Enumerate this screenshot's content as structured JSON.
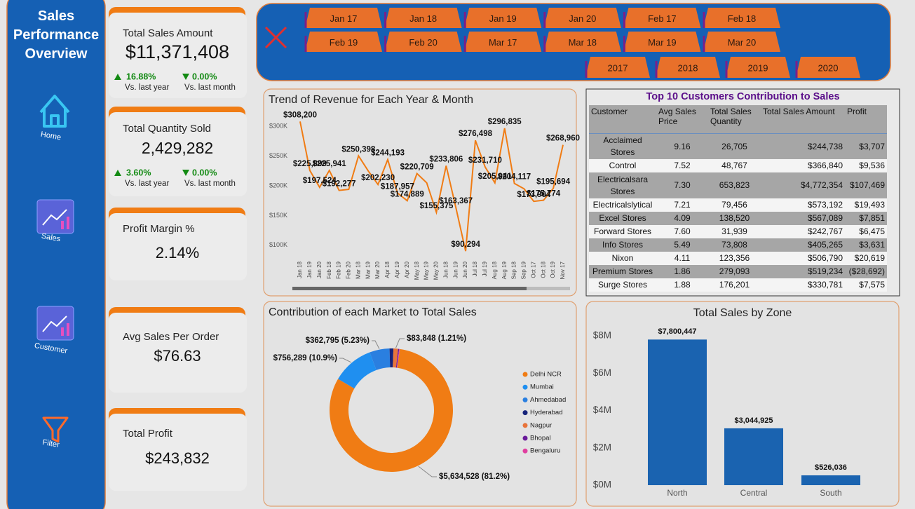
{
  "sidebar": {
    "title": "Sales Performance Overview",
    "nav": [
      "Home",
      "Sales",
      "Customer",
      "Filter"
    ]
  },
  "kpis": [
    {
      "title": "Total Sales Amount",
      "value": "$11,371,408",
      "changes": [
        {
          "value": "16.88%",
          "direction": "up",
          "label": "Vs. last year"
        },
        {
          "value": "0.00%",
          "direction": "down",
          "label": "Vs. last month"
        }
      ]
    },
    {
      "title": "Total Quantity Sold",
      "value": "2,429,282",
      "changes": [
        {
          "value": "3.60%",
          "direction": "up",
          "label": "Vs. last year"
        },
        {
          "value": "0.00%",
          "direction": "down",
          "label": "Vs. last month"
        }
      ]
    },
    {
      "title": "Profit Margin %",
      "value": "2.14%"
    },
    {
      "title": "Avg Sales Per Order",
      "value": "$76.63"
    },
    {
      "title": "Total Profit",
      "value": "$243,832"
    }
  ],
  "slicers": {
    "months": [
      "Jan 17",
      "Jan 18",
      "Jan 19",
      "Jan 20",
      "Feb 17",
      "Feb 18",
      "Feb 19",
      "Feb 20",
      "Mar 17",
      "Mar 18",
      "Mar 19",
      "Mar 20"
    ],
    "years": [
      "2017",
      "2018",
      "2019",
      "2020"
    ]
  },
  "table": {
    "title": "Top 10 Customers Contribution to Sales",
    "columns": [
      "Customer",
      "Avg Sales Price",
      "Total Sales Quantity",
      "Total Sales Amount",
      "Profit"
    ],
    "rows": [
      [
        "Acclaimed Stores",
        "9.16",
        "26,705",
        "$244,738",
        "$3,707"
      ],
      [
        "Control",
        "7.52",
        "48,767",
        "$366,840",
        "$9,536"
      ],
      [
        "Electricalsara Stores",
        "7.30",
        "653,823",
        "$4,772,354",
        "$107,469"
      ],
      [
        "Electricalslytical",
        "7.21",
        "79,456",
        "$573,192",
        "$19,493"
      ],
      [
        "Excel Stores",
        "4.09",
        "138,520",
        "$567,089",
        "$7,851"
      ],
      [
        "Forward Stores",
        "7.60",
        "31,939",
        "$242,767",
        "$6,475"
      ],
      [
        "Info Stores",
        "5.49",
        "73,808",
        "$405,265",
        "$3,631"
      ],
      [
        "Nixon",
        "4.11",
        "123,356",
        "$506,790",
        "$20,619"
      ],
      [
        "Premium Stores",
        "1.86",
        "279,093",
        "$519,234",
        "($28,692)"
      ],
      [
        "Surge Stores",
        "1.88",
        "176,201",
        "$330,781",
        "$7,575"
      ]
    ]
  },
  "chart_data": [
    {
      "type": "line",
      "title": "Trend of Revenue for Each Year & Month",
      "color": "#f07c14",
      "grid": false,
      "categories": [
        "Jan 18",
        "Jan 19",
        "Jan 20",
        "Feb 18",
        "Feb 19",
        "Feb 20",
        "Mar 18",
        "Mar 19",
        "Mar 20",
        "Apr 18",
        "Apr 19",
        "Apr 20",
        "May 18",
        "May 19",
        "May 20",
        "Jun 18",
        "Jun 19",
        "Jun 20",
        "Jul 18",
        "Jul 19",
        "Aug 18",
        "Aug 19",
        "Sep 18",
        "Sep 19",
        "Oct 17",
        "Oct 18",
        "Oct 19",
        "Nov 17"
      ],
      "values": [
        308200,
        225899,
        197524,
        225941,
        192277,
        194000,
        250398,
        225000,
        202230,
        244193,
        187957,
        174889,
        220709,
        205000,
        155375,
        233806,
        163367,
        90294,
        276498,
        231710,
        205041,
        296835,
        204117,
        195000,
        173904,
        175774,
        195694,
        268960
      ],
      "value_labels": [
        "$308,200",
        "$225,899",
        "$197,524",
        "$225,941",
        "$192,277",
        null,
        "$250,398",
        null,
        "$202,230",
        "$244,193",
        "$187,957",
        "$174,889",
        "$220,709",
        null,
        "$155,375",
        "$233,806",
        "$163,367",
        "$90,294",
        "$276,498",
        "$231,710",
        "$205,041",
        "$296,835",
        "$204,117",
        null,
        "$173,904",
        "$175,774",
        "$195,694",
        "$268,960"
      ],
      "ylim": [
        88000,
        318000
      ],
      "yticks": [
        {
          "value": 100000,
          "label": "$100K"
        },
        {
          "value": 150000,
          "label": "$150K"
        },
        {
          "value": 200000,
          "label": "$200K"
        },
        {
          "value": 250000,
          "label": "$250K"
        },
        {
          "value": 300000,
          "label": "$300K"
        }
      ]
    },
    {
      "type": "donut",
      "title": "Contribution of each Market to Total Sales",
      "categories": [
        "Delhi NCR",
        "Mumbai",
        "Ahmedabad",
        "Hyderabad",
        "Nagpur",
        "Bhopal",
        "Bengaluru"
      ],
      "values": [
        5634528,
        756289,
        362795,
        70000,
        83848,
        20000,
        11000
      ],
      "value_labels": [
        "$5,634,528 (81.2%)",
        "$756,289 (10.9%)",
        "$362,795 (5.23%)",
        null,
        "$83,848 (1.21%)",
        null,
        null
      ],
      "colors": [
        "#f07c14",
        "#1f8ff0",
        "#2a7fe0",
        "#16237a",
        "#e8743b",
        "#6a1b9a",
        "#e040a0"
      ]
    },
    {
      "type": "bar",
      "title": "Total Sales by Zone",
      "color": "#1a63b0",
      "grid": false,
      "categories": [
        "North",
        "Central",
        "South"
      ],
      "values": [
        7800447,
        3044925,
        526036
      ],
      "value_labels": [
        "$7,800,447",
        "$3,044,925",
        "$526,036"
      ],
      "ylim": [
        0,
        8500000
      ],
      "yticks": [
        {
          "value": 0,
          "label": "$0M"
        },
        {
          "value": 2000000,
          "label": "$2M"
        },
        {
          "value": 4000000,
          "label": "$4M"
        },
        {
          "value": 6000000,
          "label": "$6M"
        },
        {
          "value": 8000000,
          "label": "$8M"
        }
      ]
    }
  ]
}
